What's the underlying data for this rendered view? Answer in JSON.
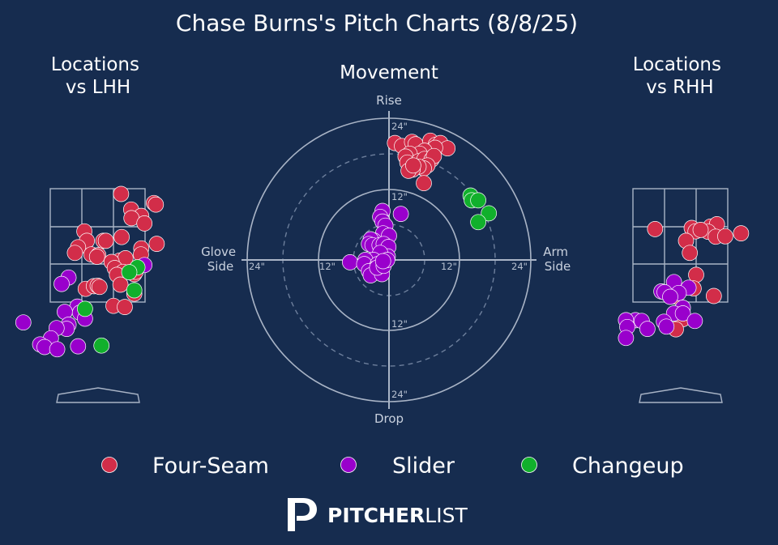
{
  "title": "Chase Burns's Pitch Charts (8/8/25)",
  "logo": {
    "brand_bold": "PITCHER",
    "brand_light": "LIST"
  },
  "colors": {
    "background": "#162c4f",
    "Four-Seam": "#d22d49",
    "Slider": "#9900cc",
    "Changeup": "#11b02c"
  },
  "chart_data": [
    {
      "type": "scatter",
      "title": "Locations\nvs LHH",
      "title_lines": [
        "Locations",
        "vs LHH"
      ],
      "xlim": [
        -2.35,
        2.0
      ],
      "ylim": [
        0.0,
        4.8
      ],
      "series": [
        {
          "name": "Four-Seam",
          "points": [
            [
              0.74,
              4.36
            ],
            [
              1.78,
              4.12
            ],
            [
              1.84,
              4.08
            ],
            [
              1.06,
              3.95
            ],
            [
              1.38,
              3.78
            ],
            [
              1.07,
              3.72
            ],
            [
              1.48,
              3.58
            ],
            [
              -0.42,
              3.37
            ],
            [
              0.76,
              3.22
            ],
            [
              -0.34,
              3.12
            ],
            [
              0.18,
              3.12
            ],
            [
              0.26,
              3.12
            ],
            [
              -0.62,
              2.95
            ],
            [
              1.38,
              2.92
            ],
            [
              -0.72,
              2.8
            ],
            [
              -0.2,
              2.76
            ],
            [
              0.02,
              2.74
            ],
            [
              -0.02,
              2.7
            ],
            [
              1.37,
              2.76
            ],
            [
              0.7,
              2.6
            ],
            [
              0.88,
              2.66
            ],
            [
              0.44,
              2.56
            ],
            [
              0.54,
              2.4
            ],
            [
              0.8,
              2.3
            ],
            [
              0.61,
              2.22
            ],
            [
              1.16,
              2.24
            ],
            [
              1.2,
              2.3
            ],
            [
              1.87,
              3.04
            ],
            [
              -0.38,
              1.85
            ],
            [
              -0.12,
              1.92
            ],
            [
              0.0,
              1.93
            ],
            [
              0.06,
              1.9
            ],
            [
              0.72,
              1.96
            ],
            [
              1.16,
              1.72
            ],
            [
              0.5,
              1.4
            ],
            [
              0.86,
              1.37
            ]
          ]
        },
        {
          "name": "Slider",
          "points": [
            [
              1.48,
              2.48
            ],
            [
              -0.92,
              2.15
            ],
            [
              -1.14,
              1.98
            ],
            [
              -0.64,
              1.38
            ],
            [
              -1.04,
              1.24
            ],
            [
              -0.56,
              1.22
            ],
            [
              -0.4,
              1.06
            ],
            [
              -0.92,
              0.9
            ],
            [
              -0.98,
              0.79
            ],
            [
              -1.3,
              0.81
            ],
            [
              -2.35,
              0.96
            ],
            [
              -1.48,
              0.54
            ],
            [
              -1.82,
              0.38
            ],
            [
              -1.68,
              0.31
            ],
            [
              -1.28,
              0.25
            ],
            [
              -0.62,
              0.33
            ]
          ]
        },
        {
          "name": "Changeup",
          "points": [
            [
              1.26,
              2.42
            ],
            [
              1.0,
              2.29
            ],
            [
              1.16,
              1.81
            ],
            [
              -0.4,
              1.32
            ],
            [
              0.12,
              0.35
            ]
          ]
        }
      ]
    },
    {
      "type": "scatter",
      "title": "Movement",
      "axis_labels": {
        "top": "Rise",
        "bottom": "Drop",
        "left": "Glove\nSide",
        "right": "Arm\nSide",
        "top_lines": [
          "Rise"
        ],
        "bottom_lines": [
          "Drop"
        ],
        "left_lines": [
          "Glove",
          "Side"
        ],
        "right_lines": [
          "Arm",
          "Side"
        ]
      },
      "ring_labels": [
        "24\"",
        "12\"",
        "12\"",
        "24\"",
        "12\"",
        "12\"",
        "24\"",
        "24\""
      ],
      "rings_inches": [
        6,
        12,
        18,
        24
      ],
      "xlim": [
        -24,
        24
      ],
      "ylim": [
        -24,
        24
      ],
      "series": [
        {
          "name": "Four-Seam",
          "points": [
            [
              1.0,
              19.8
            ],
            [
              2.2,
              19.3
            ],
            [
              3.9,
              20.0
            ],
            [
              4.5,
              19.6
            ],
            [
              7.0,
              20.2
            ],
            [
              7.9,
              19.5
            ],
            [
              8.7,
              19.8
            ],
            [
              9.9,
              18.9
            ],
            [
              7.8,
              19.0
            ],
            [
              6.0,
              18.5
            ],
            [
              5.2,
              18.0
            ],
            [
              3.5,
              18.0
            ],
            [
              2.8,
              17.5
            ],
            [
              3.1,
              16.5
            ],
            [
              4.2,
              15.9
            ],
            [
              5.0,
              16.7
            ],
            [
              6.0,
              17.1
            ],
            [
              7.2,
              17.0
            ],
            [
              7.6,
              17.6
            ],
            [
              6.5,
              16.0
            ],
            [
              5.9,
              15.5
            ],
            [
              5.0,
              15.8
            ],
            [
              4.0,
              15.3
            ],
            [
              3.3,
              15.1
            ],
            [
              4.1,
              16.0
            ],
            [
              5.9,
              13.0
            ]
          ]
        },
        {
          "name": "Slider",
          "points": [
            [
              -1.1,
              8.3
            ],
            [
              -1.5,
              7.3
            ],
            [
              -1.1,
              6.5
            ],
            [
              -0.6,
              5.8
            ],
            [
              2.0,
              7.8
            ],
            [
              -1.0,
              4.5
            ],
            [
              0.0,
              4.1
            ],
            [
              -2.6,
              3.3
            ],
            [
              -3.1,
              3.5
            ],
            [
              -3.4,
              2.7
            ],
            [
              -2.8,
              2.5
            ],
            [
              -1.6,
              2.5
            ],
            [
              -0.9,
              2.7
            ],
            [
              -0.1,
              2.2
            ],
            [
              -0.2,
              0.6
            ],
            [
              -1.5,
              1.2
            ],
            [
              -2.6,
              0.0
            ],
            [
              -4.0,
              0.0
            ],
            [
              -6.6,
              -0.4
            ],
            [
              -4.2,
              -0.7
            ],
            [
              -1.9,
              -0.7
            ],
            [
              -2.4,
              -1.5
            ],
            [
              -3.4,
              -1.9
            ],
            [
              -3.1,
              -2.6
            ],
            [
              -1.2,
              -2.4
            ],
            [
              -2.0,
              -1.3
            ],
            [
              -0.9,
              -1.0
            ],
            [
              -0.3,
              0.0
            ],
            [
              -1.0,
              -0.2
            ]
          ]
        },
        {
          "name": "Changeup",
          "points": [
            [
              13.8,
              10.9
            ],
            [
              14.0,
              10.1
            ],
            [
              15.1,
              10.1
            ],
            [
              16.9,
              7.9
            ],
            [
              15.1,
              6.4
            ]
          ]
        }
      ]
    },
    {
      "type": "scatter",
      "title": "Locations\nvs RHH",
      "title_lines": [
        "Locations",
        "vs RHH"
      ],
      "xlim": [
        -2.0,
        2.35
      ],
      "ylim": [
        0.0,
        4.8
      ],
      "series": [
        {
          "name": "Four-Seam",
          "points": [
            [
              -0.8,
              3.43
            ],
            [
              0.36,
              3.46
            ],
            [
              0.96,
              3.5
            ],
            [
              1.16,
              3.56
            ],
            [
              0.48,
              3.37
            ],
            [
              0.88,
              3.36
            ],
            [
              0.18,
              3.12
            ],
            [
              1.12,
              3.23
            ],
            [
              1.42,
              3.24
            ],
            [
              1.92,
              3.32
            ],
            [
              0.64,
              3.41
            ],
            [
              0.3,
              2.8
            ],
            [
              0.5,
              2.22
            ],
            [
              0.42,
              1.86
            ],
            [
              -0.2,
              1.65
            ],
            [
              1.06,
              1.66
            ],
            [
              0.08,
              1.05
            ],
            [
              -0.14,
              0.78
            ]
          ]
        },
        {
          "name": "Slider",
          "points": [
            [
              -0.2,
              2.03
            ],
            [
              0.26,
              1.88
            ],
            [
              -0.6,
              1.78
            ],
            [
              -0.5,
              1.76
            ],
            [
              -0.05,
              1.74
            ],
            [
              -0.32,
              1.64
            ],
            [
              0.08,
              1.35
            ],
            [
              -0.2,
              1.2
            ],
            [
              0.08,
              1.2
            ],
            [
              -1.42,
              1.02
            ],
            [
              -1.72,
              1.02
            ],
            [
              -1.22,
              1.0
            ],
            [
              -0.52,
              0.98
            ],
            [
              -0.44,
              0.85
            ],
            [
              -1.68,
              0.84
            ],
            [
              -1.04,
              0.79
            ],
            [
              -1.72,
              0.55
            ],
            [
              0.46,
              1.0
            ]
          ]
        },
        {
          "name": "Changeup",
          "points": []
        }
      ]
    }
  ],
  "legend": {
    "placement": "bottom",
    "entries": [
      {
        "name": "Four-Seam",
        "color": "#d22d49"
      },
      {
        "name": "Slider",
        "color": "#9900cc"
      },
      {
        "name": "Changeup",
        "color": "#11b02c"
      }
    ]
  }
}
